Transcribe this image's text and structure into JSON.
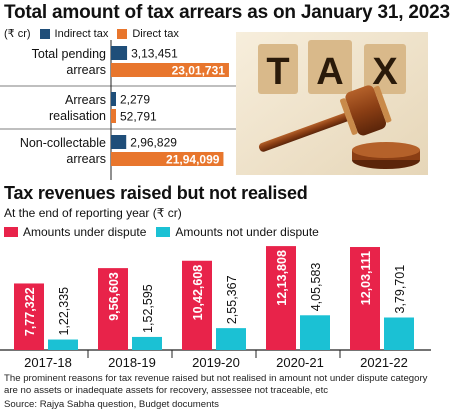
{
  "colors": {
    "indirect": "#1f4e79",
    "direct": "#e8762d",
    "disputed": "#e8234a",
    "not_disputed": "#1bc1d4"
  },
  "top": {
    "title": "Total amount of tax arrears as on January 31, 2023",
    "unit": "(₹ cr)",
    "legend": {
      "indirect": "Indirect tax",
      "direct": "Direct tax"
    },
    "illustration_text": "TAX"
  },
  "bottom": {
    "title": "Tax revenues raised but not realised",
    "subtitle": "At the end of reporting year (₹ cr)",
    "legend": {
      "disputed": "Amounts under dispute",
      "not_disputed": "Amounts not under dispute"
    }
  },
  "footnote": "The prominent reasons for tax revenue raised but not realised in amount not under dispute category are no assets or inadequate assets for recovery, assessee not traceable, etc",
  "source": "Source: Rajya Sabha question, Budget documents",
  "chart_data": [
    {
      "type": "bar",
      "orientation": "horizontal",
      "categories": [
        "Total pending arrears",
        "Arrears realisation",
        "Non-collectable arrears"
      ],
      "category_lines": [
        [
          "Total pending",
          "arrears"
        ],
        [
          "Arrears",
          "realisation"
        ],
        [
          "Non-collectable",
          "arrears"
        ]
      ],
      "series": [
        {
          "name": "Indirect tax",
          "values": [
            313451,
            2279,
            296829
          ],
          "labels": [
            "3,13,451",
            "2,279",
            "2,96,829"
          ]
        },
        {
          "name": "Direct tax",
          "values": [
            2301731,
            52791,
            2194099
          ],
          "labels": [
            "23,01,731",
            "52,791",
            "21,94,099"
          ]
        }
      ],
      "xlim": [
        0,
        2400000
      ]
    },
    {
      "type": "bar",
      "orientation": "vertical",
      "categories": [
        "2017-18",
        "2018-19",
        "2019-20",
        "2020-21",
        "2021-22"
      ],
      "series": [
        {
          "name": "Amounts under dispute",
          "values": [
            777322,
            956603,
            1042608,
            1213808,
            1203111
          ],
          "labels": [
            "7,77,322",
            "9,56,603",
            "10,42,608",
            "12,13,808",
            "12,03,111"
          ]
        },
        {
          "name": "Amounts not under dispute",
          "values": [
            122335,
            152595,
            255367,
            405583,
            379701
          ],
          "labels": [
            "1,22,335",
            "1,52,595",
            "2,55,367",
            "4,05,583",
            "3,79,701"
          ]
        }
      ],
      "ylim": [
        0,
        1250000
      ]
    }
  ]
}
